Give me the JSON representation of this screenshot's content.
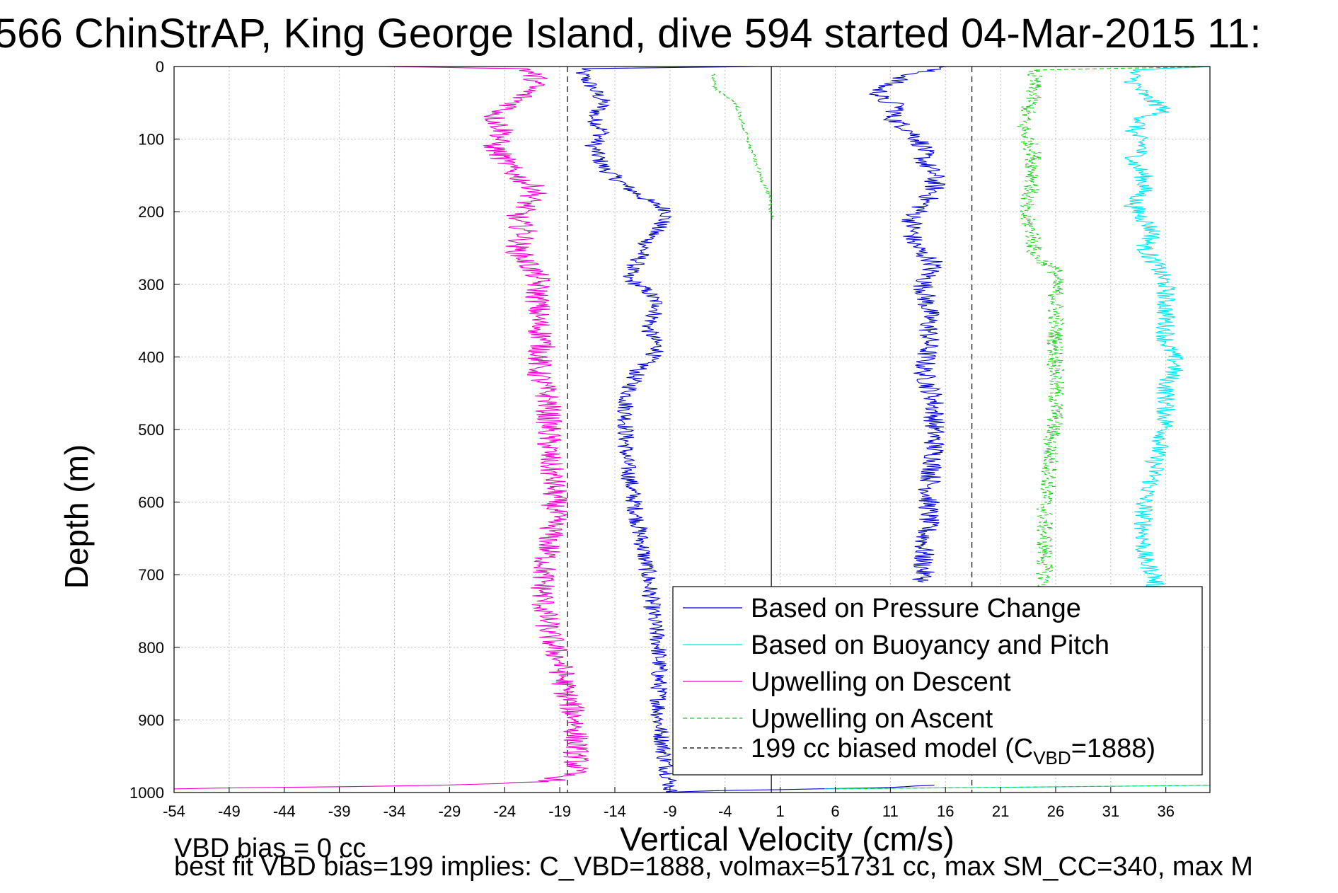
{
  "title": "566 ChinStrAP, King George Island, dive 594 started 04-Mar-2015 11:",
  "notes": {
    "line1": "VBD bias = 0 cc",
    "line2": "best fit VBD bias=199 implies: C_VBD=1888, volmax=51731 cc, max SM_CC=340, max M"
  },
  "chart_data": {
    "type": "line",
    "xlabel": "Vertical Velocity (cm/s)",
    "ylabel": "Depth (m)",
    "xlim": [
      -54,
      40
    ],
    "ylim": [
      1000,
      0
    ],
    "y_reversed": true,
    "grid": true,
    "xticks": [
      -54,
      -49,
      -44,
      -39,
      -34,
      -29,
      -24,
      -19,
      -14,
      -9,
      -4,
      1,
      6,
      11,
      16,
      21,
      26,
      31,
      36
    ],
    "yticks": [
      0,
      100,
      200,
      300,
      400,
      500,
      600,
      700,
      800,
      900,
      1000
    ],
    "legend": {
      "placement": "bottom-right",
      "entries": [
        {
          "label": "Based on Pressure Change",
          "color": "#0000cc",
          "style": "solid"
        },
        {
          "label": "Based on Buoyancy and Pitch",
          "color": "#00e5ee",
          "style": "solid"
        },
        {
          "label": "Upwelling on Descent",
          "color": "#ee00cc",
          "style": "solid"
        },
        {
          "label": "Upwelling on Ascent",
          "color": "#22cc22",
          "style": "dashed"
        },
        {
          "label": "199 cc biased model (C",
          "sub": "VBD",
          "suffix": "=1888)",
          "color": "#000000",
          "style": "dashed"
        }
      ]
    },
    "reference_lines": [
      {
        "x": -18.3,
        "style": "dashed",
        "color": "#000000"
      },
      {
        "x": 0.2,
        "style": "solid",
        "color": "#000000"
      },
      {
        "x": 18.4,
        "style": "dashed",
        "color": "#000000"
      }
    ],
    "series": [
      {
        "name": "Based on Pressure Change",
        "color": "#0000cc",
        "style": "solid",
        "jitter": 0.8,
        "points": [
          [
            -1,
            0
          ],
          [
            -17,
            3
          ],
          [
            -17,
            10
          ],
          [
            -16,
            30
          ],
          [
            -15,
            50
          ],
          [
            -16,
            70
          ],
          [
            -15,
            90
          ],
          [
            -16,
            110
          ],
          [
            -15,
            140
          ],
          [
            -13,
            165
          ],
          [
            -11,
            185
          ],
          [
            -9,
            200
          ],
          [
            -10,
            220
          ],
          [
            -11,
            240
          ],
          [
            -12,
            270
          ],
          [
            -13,
            290
          ],
          [
            -11,
            310
          ],
          [
            -10,
            330
          ],
          [
            -11,
            360
          ],
          [
            -10,
            390
          ],
          [
            -12,
            420
          ],
          [
            -13,
            460
          ],
          [
            -13,
            500
          ],
          [
            -13,
            540
          ],
          [
            -12.5,
            580
          ],
          [
            -12,
            620
          ],
          [
            -11.5,
            660
          ],
          [
            -11,
            700
          ],
          [
            -10.5,
            760
          ],
          [
            -10,
            800
          ],
          [
            -10,
            850
          ],
          [
            -10,
            900
          ],
          [
            -9.5,
            950
          ],
          [
            -9,
            985
          ],
          [
            -9,
            992
          ],
          [
            -9,
            1000
          ],
          [
            -6,
            998
          ],
          [
            1,
            996
          ],
          [
            11,
            993
          ],
          [
            15,
            990
          ]
        ]
      },
      {
        "name": "Based on Pressure Change",
        "color": "#0000cc",
        "style": "solid",
        "jitter": 1.0,
        "points": [
          [
            16,
            0
          ],
          [
            13,
            10
          ],
          [
            10,
            30
          ],
          [
            10,
            45
          ],
          [
            12,
            55
          ],
          [
            11,
            70
          ],
          [
            13,
            90
          ],
          [
            14,
            110
          ],
          [
            14,
            130
          ],
          [
            15,
            150
          ],
          [
            15,
            170
          ],
          [
            14,
            190
          ],
          [
            13,
            210
          ],
          [
            13,
            240
          ],
          [
            14,
            260
          ],
          [
            15,
            270
          ],
          [
            14,
            300
          ],
          [
            14.5,
            340
          ],
          [
            14.5,
            380
          ],
          [
            14,
            420
          ],
          [
            15,
            460
          ],
          [
            15,
            500
          ],
          [
            15,
            540
          ],
          [
            14.5,
            580
          ],
          [
            14.5,
            620
          ],
          [
            14,
            660
          ],
          [
            14,
            700
          ],
          [
            14,
            710
          ]
        ]
      },
      {
        "name": "Based on Buoyancy and Pitch",
        "color": "#00e5ee",
        "style": "solid",
        "jitter": 0.9,
        "points": [
          [
            40,
            0
          ],
          [
            33,
            5
          ],
          [
            33,
            20
          ],
          [
            34,
            40
          ],
          [
            36,
            60
          ],
          [
            34,
            70
          ],
          [
            33,
            90
          ],
          [
            34,
            110
          ],
          [
            33,
            130
          ],
          [
            34,
            150
          ],
          [
            34,
            170
          ],
          [
            33,
            190
          ],
          [
            34,
            210
          ],
          [
            35,
            230
          ],
          [
            34,
            250
          ],
          [
            35,
            270
          ],
          [
            36,
            300
          ],
          [
            36,
            340
          ],
          [
            36,
            380
          ],
          [
            37,
            410
          ],
          [
            36,
            440
          ],
          [
            36,
            470
          ],
          [
            36,
            500
          ],
          [
            35,
            540
          ],
          [
            35,
            560
          ],
          [
            34,
            600
          ],
          [
            34,
            640
          ],
          [
            34,
            680
          ],
          [
            35,
            700
          ],
          [
            35,
            720
          ]
        ]
      },
      {
        "name": "Based on Buoyancy and Pitch",
        "color": "#00e5ee",
        "style": "solid",
        "jitter": 0.4,
        "points": [
          [
            5,
            995
          ],
          [
            20,
            993
          ],
          [
            40,
            990
          ]
        ]
      },
      {
        "name": "Upwelling on Descent",
        "color": "#ee00cc",
        "style": "solid",
        "jitter": 1.2,
        "points": [
          [
            -35,
            0
          ],
          [
            -22,
            3
          ],
          [
            -21,
            20
          ],
          [
            -23,
            50
          ],
          [
            -25,
            70
          ],
          [
            -24,
            90
          ],
          [
            -25,
            110
          ],
          [
            -24,
            130
          ],
          [
            -23,
            150
          ],
          [
            -21,
            170
          ],
          [
            -22,
            190
          ],
          [
            -23,
            210
          ],
          [
            -22,
            230
          ],
          [
            -23,
            250
          ],
          [
            -22,
            270
          ],
          [
            -21,
            290
          ],
          [
            -21,
            320
          ],
          [
            -21,
            350
          ],
          [
            -20.5,
            380
          ],
          [
            -21,
            420
          ],
          [
            -20,
            460
          ],
          [
            -20,
            500
          ],
          [
            -20,
            540
          ],
          [
            -19.5,
            580
          ],
          [
            -19.5,
            620
          ],
          [
            -20,
            660
          ],
          [
            -20.5,
            700
          ],
          [
            -20.5,
            740
          ],
          [
            -20,
            780
          ],
          [
            -19,
            820
          ],
          [
            -18.5,
            860
          ],
          [
            -17.5,
            900
          ],
          [
            -17.5,
            940
          ],
          [
            -17.5,
            970
          ],
          [
            -20,
            985
          ],
          [
            -30,
            990
          ],
          [
            -45,
            993
          ],
          [
            -54,
            995
          ]
        ]
      },
      {
        "name": "Upwelling on Ascent",
        "color": "#22cc22",
        "style": "dashed",
        "jitter": 0.8,
        "points": [
          [
            40,
            0
          ],
          [
            24,
            5
          ],
          [
            24,
            40
          ],
          [
            23,
            80
          ],
          [
            24,
            120
          ],
          [
            24,
            160
          ],
          [
            23,
            200
          ],
          [
            24,
            230
          ],
          [
            24,
            260
          ],
          [
            26,
            280
          ],
          [
            26,
            320
          ],
          [
            26,
            360
          ],
          [
            26,
            400
          ],
          [
            26,
            440
          ],
          [
            26,
            480
          ],
          [
            25.5,
            520
          ],
          [
            25.5,
            560
          ],
          [
            25,
            600
          ],
          [
            25,
            640
          ],
          [
            25,
            680
          ],
          [
            25,
            700
          ],
          [
            25,
            720
          ]
        ]
      },
      {
        "name": "Upwelling on Ascent",
        "color": "#22cc22",
        "style": "dashed",
        "jitter": 0.2,
        "points": [
          [
            -5,
            10
          ],
          [
            -5,
            30
          ],
          [
            -3,
            50
          ],
          [
            -2,
            100
          ],
          [
            -1,
            140
          ],
          [
            0,
            180
          ],
          [
            0.3,
            210
          ]
        ]
      },
      {
        "name": "Upwelling on Ascent",
        "color": "#22cc22",
        "style": "dashed",
        "jitter": 0.4,
        "points": [
          [
            6,
            995
          ],
          [
            20,
            993
          ],
          [
            40,
            990
          ]
        ]
      }
    ]
  }
}
